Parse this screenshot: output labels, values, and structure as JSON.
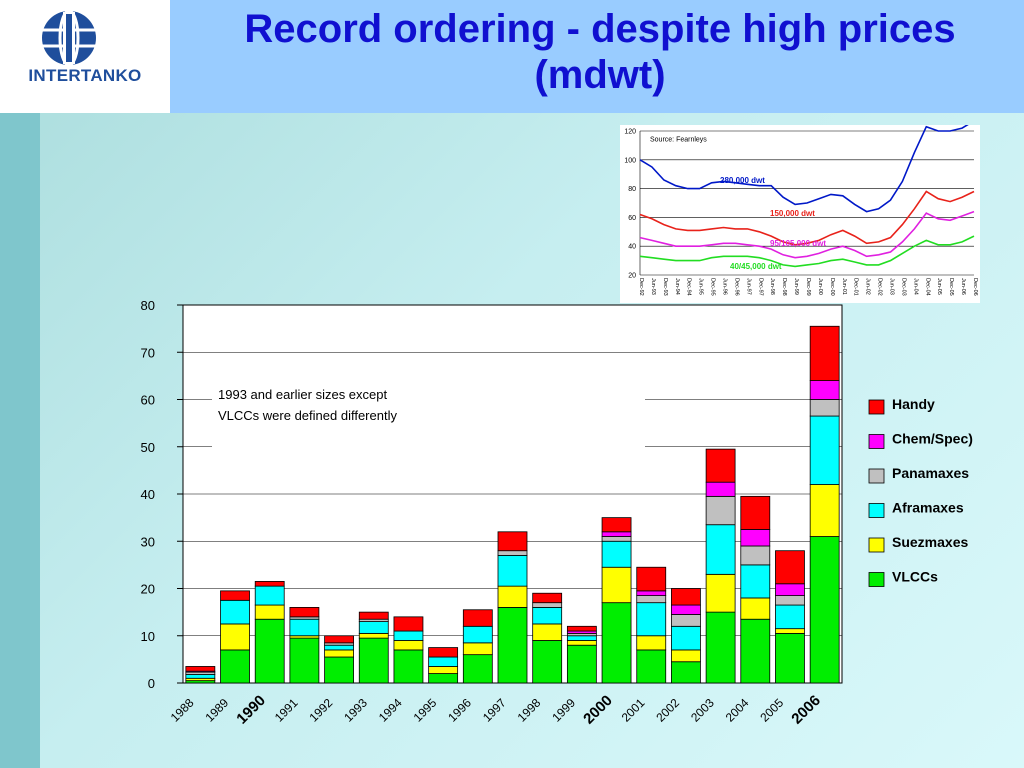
{
  "header": {
    "title_line1": "Record ordering - despite high prices",
    "title_line2": "(mdwt)",
    "logo_text": "INTERTANKO",
    "logo_icon": "globe-i-logo-icon"
  },
  "note": {
    "line1": "1993 and earlier sizes except",
    "line2": "VLCCs were defined differently"
  },
  "chart_data": [
    {
      "type": "bar",
      "stacked": true,
      "title": "",
      "xlabel": "",
      "ylabel": "",
      "ylim": [
        0,
        80
      ],
      "yticks": [
        0,
        10,
        20,
        30,
        40,
        50,
        60,
        70,
        80
      ],
      "grid": true,
      "legend_position": "right",
      "categories": [
        "1988",
        "1989",
        "1990",
        "1991",
        "1992",
        "1993",
        "1994",
        "1995",
        "1996",
        "1997",
        "1998",
        "1999",
        "2000",
        "2001",
        "2002",
        "2003",
        "2004",
        "2005",
        "2006"
      ],
      "highlighted_categories": [
        "1990",
        "2000",
        "2006"
      ],
      "series": [
        {
          "name": "VLCCs",
          "color": "#00ee00",
          "values": [
            0.5,
            7,
            13.5,
            9.5,
            5.5,
            9.5,
            7,
            2,
            6,
            16,
            9,
            8,
            17,
            7,
            4.5,
            15,
            13.5,
            10.5,
            31
          ]
        },
        {
          "name": "Suezmaxes",
          "color": "#ffff00",
          "values": [
            0.5,
            5.5,
            3,
            0.5,
            1.5,
            1,
            2,
            1.5,
            2.5,
            4.5,
            3.5,
            1,
            7.5,
            3,
            2.5,
            8,
            4.5,
            1,
            11
          ]
        },
        {
          "name": "Aframaxes",
          "color": "#00ffff",
          "values": [
            0.8,
            5,
            4,
            3.5,
            1,
            2.5,
            2,
            2,
            3.5,
            6.5,
            3.5,
            1,
            5.5,
            7,
            5,
            10.5,
            7,
            5,
            14.5
          ]
        },
        {
          "name": "Panamaxes",
          "color": "#c0c0c0",
          "values": [
            0.5,
            0,
            0,
            0.5,
            0.5,
            0.5,
            0,
            0,
            0,
            1,
            1,
            0.5,
            1,
            1.5,
            2.5,
            6,
            4,
            2,
            3.5
          ]
        },
        {
          "name": "Chem/Spec)",
          "color": "#ff00ff",
          "values": [
            0.2,
            0,
            0,
            0,
            0,
            0,
            0,
            0,
            0,
            0,
            0,
            0.5,
            1,
            1,
            2,
            3,
            3.5,
            2.5,
            4
          ]
        },
        {
          "name": "Handy",
          "color": "#ff0000",
          "values": [
            1,
            2,
            1,
            2,
            1.5,
            1.5,
            3,
            2,
            3.5,
            4,
            2,
            1,
            3,
            5,
            3.5,
            7,
            7,
            7,
            11.5
          ]
        }
      ]
    },
    {
      "type": "line",
      "annotation": "Source:  Fearnleys",
      "ylim": [
        20,
        120
      ],
      "yticks": [
        20,
        40,
        60,
        80,
        100,
        120
      ],
      "grid": true,
      "x": [
        "Dec-92",
        "Jun-93",
        "Dec-93",
        "Jun-94",
        "Dec-94",
        "Jun-95",
        "Dec-95",
        "Jun-96",
        "Dec-96",
        "Jun-97",
        "Dec-97",
        "Jun-98",
        "Dec-98",
        "Jun-99",
        "Dec-99",
        "Jun-00",
        "Dec-00",
        "Jun-01",
        "Dec-01",
        "Jun-02",
        "Dec-02",
        "Jun-03",
        "Dec-03",
        "Jun-04",
        "Dec-04",
        "Jun-05",
        "Dec-05",
        "Jun-06",
        "Dec-06"
      ],
      "series": [
        {
          "name": "280,000 dwt",
          "color": "#0018c8",
          "values": [
            100,
            95,
            86,
            82,
            80,
            80,
            84,
            85,
            84,
            83,
            82,
            82,
            74,
            69,
            70,
            73,
            76,
            75,
            69,
            64,
            66,
            72,
            85,
            105,
            123,
            120,
            120,
            122,
            127
          ]
        },
        {
          "name": "150,000 dwt",
          "color": "#e8221a",
          "values": [
            62,
            59,
            55,
            52,
            51,
            51,
            52,
            53,
            52,
            52,
            50,
            47,
            43,
            41,
            42,
            44,
            48,
            51,
            47,
            42,
            43,
            46,
            55,
            66,
            78,
            73,
            71,
            74,
            78
          ]
        },
        {
          "name": "95/105,000 dwt",
          "color": "#e020e0",
          "values": [
            46,
            44,
            42,
            40,
            40,
            40,
            41,
            42,
            42,
            41,
            40,
            38,
            34,
            32,
            33,
            35,
            38,
            40,
            37,
            33,
            34,
            36,
            43,
            52,
            63,
            59,
            58,
            61,
            64
          ]
        },
        {
          "name": "40/45,000 dwt",
          "color": "#22dd22",
          "values": [
            33,
            32,
            31,
            30,
            30,
            30,
            32,
            33,
            33,
            33,
            32,
            30,
            27,
            26,
            27,
            28,
            30,
            31,
            29,
            27,
            27,
            30,
            35,
            40,
            44,
            41,
            41,
            43,
            47
          ]
        }
      ]
    }
  ]
}
